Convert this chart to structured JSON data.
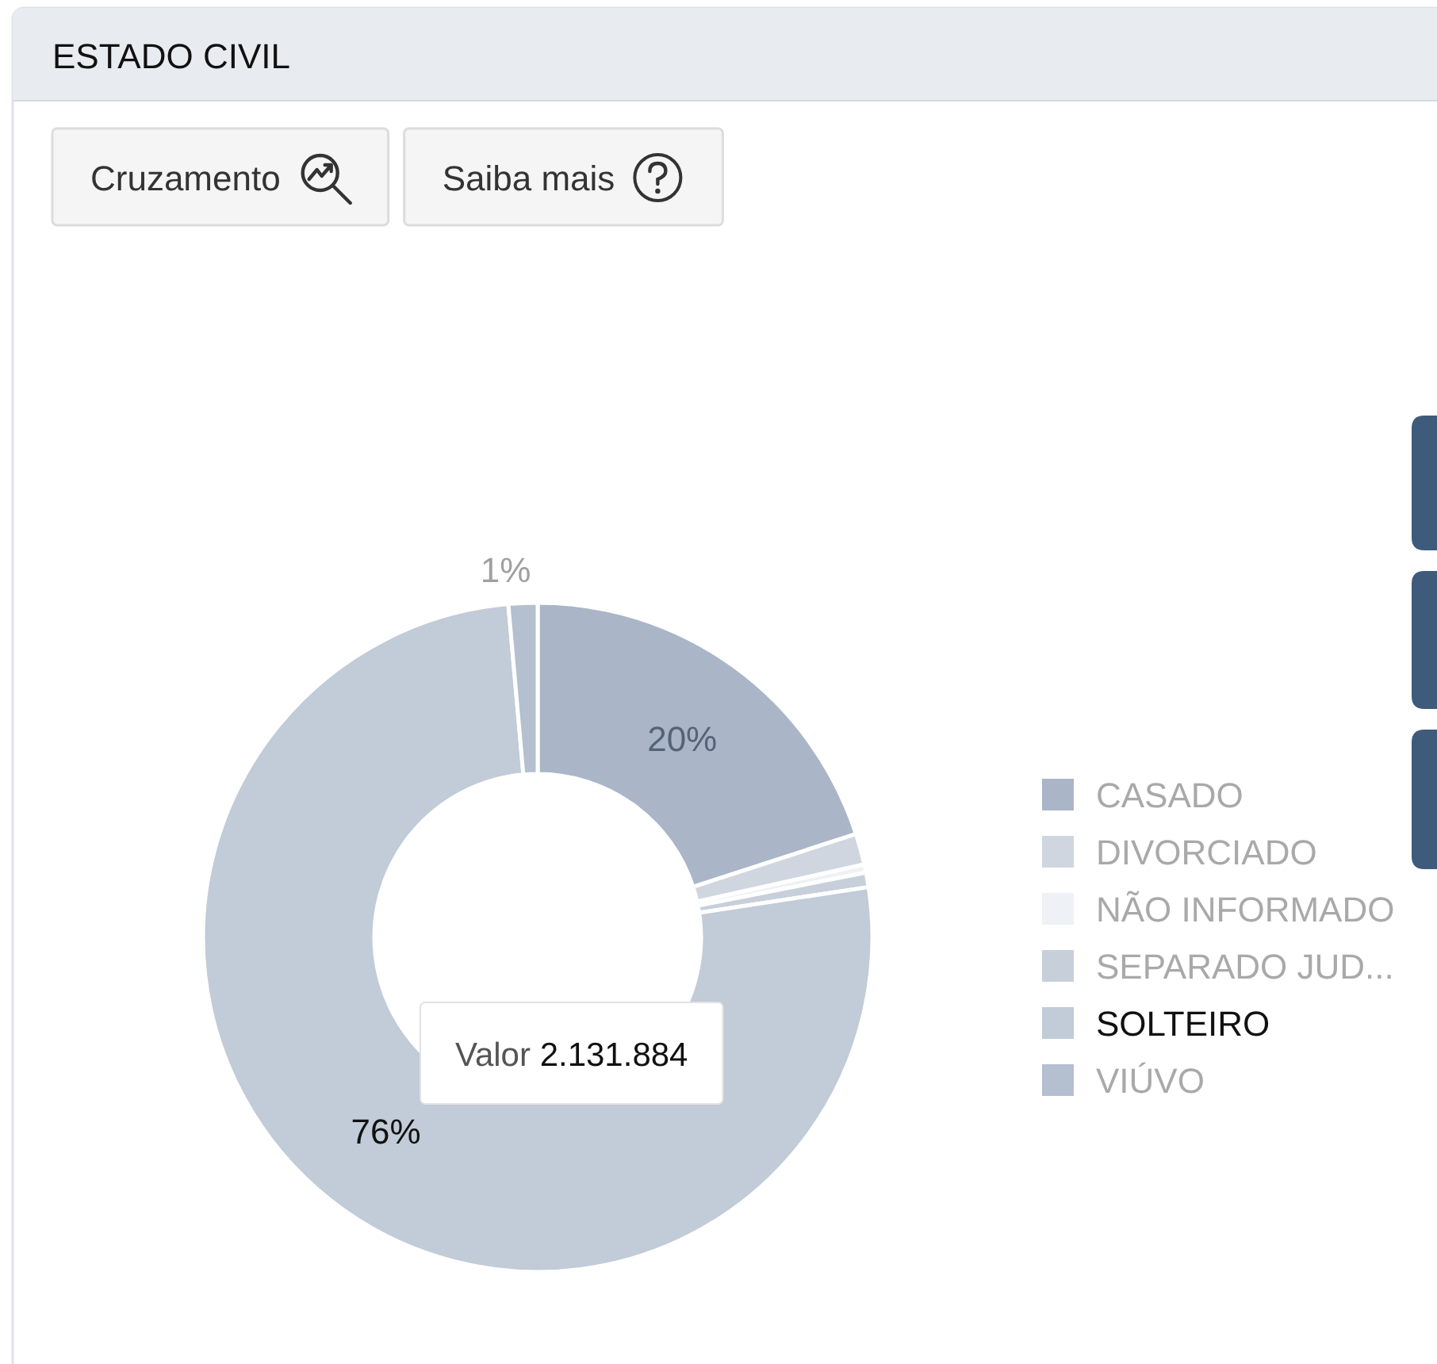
{
  "chart_data": {
    "type": "donut",
    "title": "ESTADO CIVIL",
    "categories": [
      "CASADO",
      "DIVORCIADO",
      "NÃO INFORMADO",
      "SEPARADO JUD...",
      "SOLTEIRO",
      "VIÚVO"
    ],
    "values": [
      20,
      1.5,
      0.4,
      0.7,
      76,
      1.4
    ],
    "colors": [
      "#aab6c7",
      "#d0d6e0",
      "#eef1f5",
      "#c7cfdb",
      "#c2cbd8",
      "#b4bfcf"
    ],
    "value_labels": [
      "20%",
      null,
      null,
      null,
      "76%",
      "1%"
    ],
    "legend": "right",
    "annotations": [
      "Cruzamento",
      "Saiba mais",
      "Valor 2.131.884"
    ]
  }
}
